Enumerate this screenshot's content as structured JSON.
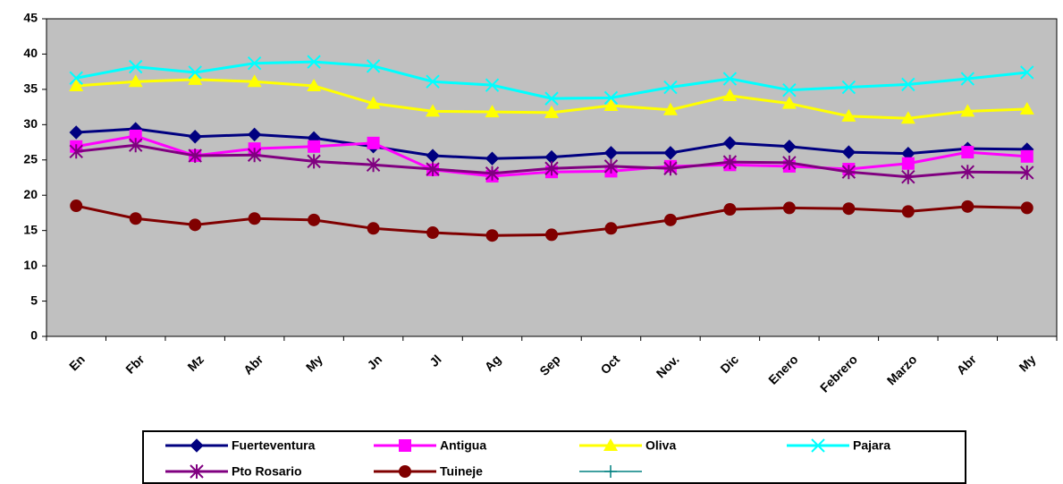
{
  "chart_data": {
    "type": "line",
    "categories": [
      "En",
      "Fbr",
      "Mz",
      "Abr",
      "My",
      "Jn",
      "Jl",
      "Ag",
      "Sep",
      "Oct",
      "Nov.",
      "Dic",
      "Enero",
      "Febrero",
      "Marzo",
      "Abr",
      "My"
    ],
    "ylim": [
      0,
      45
    ],
    "yticks": [
      0,
      5,
      10,
      15,
      20,
      25,
      30,
      35,
      40,
      45
    ],
    "series": [
      {
        "name": "Fuerteventura",
        "color": "#000080",
        "marker": "diamond",
        "values": [
          28.9,
          29.4,
          28.3,
          28.6,
          28.1,
          26.9,
          25.6,
          25.2,
          25.4,
          26.0,
          26.0,
          27.4,
          26.9,
          26.1,
          25.9,
          26.6,
          26.5
        ]
      },
      {
        "name": "Antigua",
        "color": "#ff00ff",
        "marker": "square",
        "values": [
          26.9,
          28.4,
          25.6,
          26.6,
          26.9,
          27.4,
          23.6,
          22.7,
          23.3,
          23.4,
          24.1,
          24.3,
          24.1,
          23.7,
          24.5,
          26.1,
          25.5
        ]
      },
      {
        "name": "Oliva",
        "color": "#ffff00",
        "marker": "triangle",
        "values": [
          35.5,
          36.1,
          36.4,
          36.1,
          35.5,
          33.0,
          31.9,
          31.8,
          31.7,
          32.7,
          32.1,
          34.1,
          33.0,
          31.2,
          30.9,
          31.9,
          32.2
        ]
      },
      {
        "name": "Pajara",
        "color": "#00ffff",
        "marker": "x",
        "values": [
          36.6,
          38.2,
          37.4,
          38.7,
          38.9,
          38.3,
          36.1,
          35.6,
          33.7,
          33.8,
          35.3,
          36.5,
          34.9,
          35.3,
          35.7,
          36.5,
          37.4
        ]
      },
      {
        "name": "Pto Rosario",
        "color": "#800080",
        "marker": "star",
        "values": [
          26.2,
          27.1,
          25.6,
          25.7,
          24.8,
          24.3,
          23.7,
          23.1,
          23.8,
          24.1,
          23.8,
          24.7,
          24.6,
          23.3,
          22.6,
          23.3,
          23.2
        ]
      },
      {
        "name": "Tuineje",
        "color": "#800000",
        "marker": "circle",
        "values": [
          18.5,
          16.7,
          15.8,
          16.7,
          16.5,
          15.3,
          14.7,
          14.3,
          14.4,
          15.3,
          16.5,
          18.0,
          18.2,
          18.1,
          17.7,
          18.4,
          18.2
        ]
      }
    ]
  }
}
